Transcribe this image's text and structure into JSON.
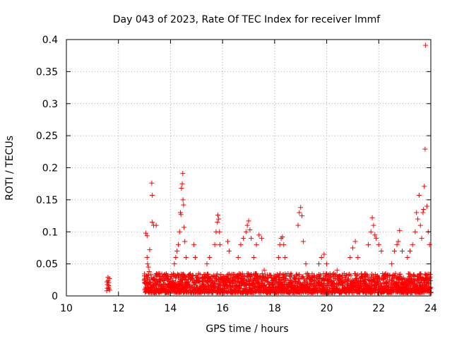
{
  "chart_data": {
    "type": "scatter",
    "title": "Day 043 of 2023, Rate Of TEC Index for receiver lmmf",
    "xlabel": "GPS time / hours",
    "ylabel": "ROTI / TECUs",
    "xlim": [
      10,
      24
    ],
    "ylim": [
      0,
      0.4
    ],
    "xticks": [
      10,
      12,
      14,
      16,
      18,
      20,
      22,
      24
    ],
    "yticks": [
      0,
      0.05,
      0.1,
      0.15,
      0.2,
      0.25,
      0.3,
      0.35,
      0.4
    ],
    "xtick_labels": [
      "10",
      "12",
      "14",
      "16",
      "18",
      "20",
      "22",
      "24"
    ],
    "ytick_labels": [
      "0",
      "0.05",
      "0.1",
      "0.15",
      "0.2",
      "0.25",
      "0.3",
      "0.35",
      "0.4"
    ],
    "grid": true,
    "marker": "+",
    "marker_color": "#ff0000",
    "series": [
      {
        "name": "ROTI",
        "points": [
          [
            11.55,
            0.008
          ],
          [
            11.57,
            0.012
          ],
          [
            11.58,
            0.018
          ],
          [
            11.6,
            0.024
          ],
          [
            11.6,
            0.029
          ],
          [
            11.62,
            0.016
          ],
          [
            11.63,
            0.021
          ],
          [
            11.64,
            0.011
          ],
          [
            11.65,
            0.027
          ],
          [
            11.66,
            0.009
          ],
          [
            11.56,
            0.022
          ],
          [
            11.62,
            0.013
          ],
          [
            13.05,
            0.098
          ],
          [
            13.1,
            0.094
          ],
          [
            13.1,
            0.06
          ],
          [
            13.12,
            0.05
          ],
          [
            13.15,
            0.045
          ],
          [
            13.18,
            0.038
          ],
          [
            13.2,
            0.072
          ],
          [
            13.28,
            0.176
          ],
          [
            13.3,
            0.157
          ],
          [
            13.3,
            0.115
          ],
          [
            13.35,
            0.11
          ],
          [
            13.4,
            0.02
          ],
          [
            13.45,
            0.11
          ],
          [
            13.55,
            0.035
          ],
          [
            13.6,
            0.03
          ],
          [
            14.15,
            0.05
          ],
          [
            14.2,
            0.06
          ],
          [
            14.25,
            0.07
          ],
          [
            14.3,
            0.08
          ],
          [
            14.35,
            0.1
          ],
          [
            14.38,
            0.13
          ],
          [
            14.4,
            0.127
          ],
          [
            14.42,
            0.168
          ],
          [
            14.45,
            0.175
          ],
          [
            14.47,
            0.191
          ],
          [
            14.48,
            0.15
          ],
          [
            14.5,
            0.142
          ],
          [
            14.52,
            0.107
          ],
          [
            14.55,
            0.085
          ],
          [
            14.6,
            0.06
          ],
          [
            14.9,
            0.08
          ],
          [
            14.95,
            0.06
          ],
          [
            15.4,
            0.05
          ],
          [
            15.5,
            0.06
          ],
          [
            15.7,
            0.08
          ],
          [
            15.75,
            0.1
          ],
          [
            15.8,
            0.115
          ],
          [
            15.82,
            0.126
          ],
          [
            15.85,
            0.12
          ],
          [
            15.88,
            0.1
          ],
          [
            15.9,
            0.08
          ],
          [
            16.2,
            0.085
          ],
          [
            16.25,
            0.07
          ],
          [
            16.6,
            0.06
          ],
          [
            16.7,
            0.08
          ],
          [
            16.8,
            0.09
          ],
          [
            16.9,
            0.1
          ],
          [
            16.95,
            0.11
          ],
          [
            17.0,
            0.117
          ],
          [
            17.05,
            0.103
          ],
          [
            17.1,
            0.09
          ],
          [
            17.2,
            0.06
          ],
          [
            17.3,
            0.08
          ],
          [
            17.4,
            0.095
          ],
          [
            17.5,
            0.09
          ],
          [
            17.6,
            0.04
          ],
          [
            18.15,
            0.06
          ],
          [
            18.2,
            0.08
          ],
          [
            18.25,
            0.09
          ],
          [
            18.3,
            0.092
          ],
          [
            18.35,
            0.08
          ],
          [
            18.4,
            0.06
          ],
          [
            18.9,
            0.11
          ],
          [
            18.95,
            0.13
          ],
          [
            19.0,
            0.138
          ],
          [
            19.05,
            0.125
          ],
          [
            19.1,
            0.085
          ],
          [
            19.2,
            0.05
          ],
          [
            19.7,
            0.05
          ],
          [
            19.8,
            0.06
          ],
          [
            19.9,
            0.065
          ],
          [
            20.0,
            0.05
          ],
          [
            20.4,
            0.04
          ],
          [
            20.9,
            0.06
          ],
          [
            21.0,
            0.075
          ],
          [
            21.1,
            0.085
          ],
          [
            21.2,
            0.06
          ],
          [
            21.6,
            0.08
          ],
          [
            21.7,
            0.1
          ],
          [
            21.75,
            0.122
          ],
          [
            21.8,
            0.11
          ],
          [
            21.85,
            0.095
          ],
          [
            21.9,
            0.09
          ],
          [
            22.0,
            0.08
          ],
          [
            22.1,
            0.07
          ],
          [
            22.5,
            0.05
          ],
          [
            22.6,
            0.07
          ],
          [
            22.7,
            0.08
          ],
          [
            22.75,
            0.085
          ],
          [
            22.8,
            0.102
          ],
          [
            22.9,
            0.07
          ],
          [
            23.1,
            0.06
          ],
          [
            23.2,
            0.07
          ],
          [
            23.3,
            0.08
          ],
          [
            23.4,
            0.1
          ],
          [
            23.45,
            0.13
          ],
          [
            23.5,
            0.12
          ],
          [
            23.55,
            0.157
          ],
          [
            23.6,
            0.11
          ],
          [
            23.65,
            0.09
          ],
          [
            23.7,
            0.13
          ],
          [
            23.72,
            0.135
          ],
          [
            23.75,
            0.171
          ],
          [
            23.78,
            0.229
          ],
          [
            23.8,
            0.391
          ],
          [
            23.85,
            0.14
          ],
          [
            23.9,
            0.1
          ],
          [
            23.95,
            0.08
          ]
        ]
      }
    ],
    "dense_band": {
      "x_range": [
        13.0,
        24.0
      ],
      "y_baseline": [
        0.005,
        0.035
      ],
      "description": "continuous cluster of low ROTI values"
    }
  }
}
